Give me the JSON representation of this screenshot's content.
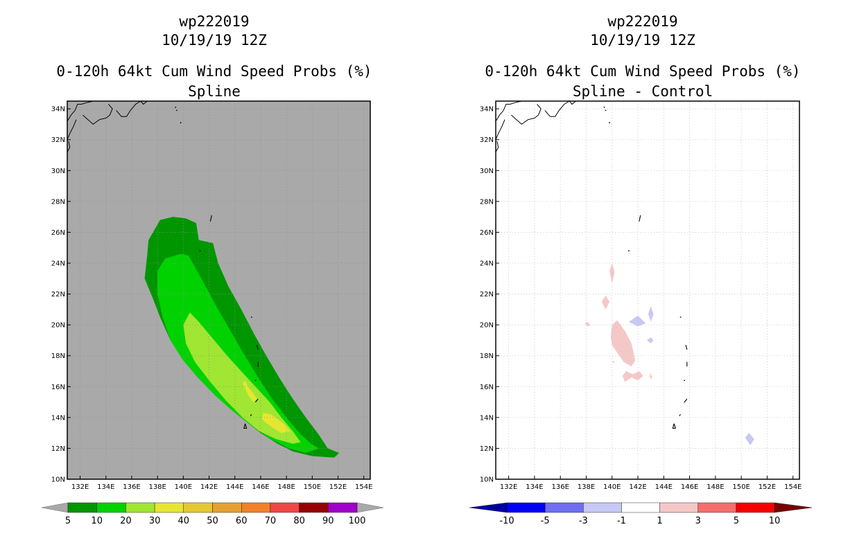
{
  "chart_data": [
    {
      "type": "contour-map",
      "header": {
        "storm_id": "wp222019",
        "datetime": "10/19/19 12Z"
      },
      "title": "0-120h 64kt Cum Wind Speed Probs (%)",
      "subtitle": "Spline",
      "units": "%",
      "xlim": [
        131,
        154.5
      ],
      "ylim": [
        10,
        34.5
      ],
      "x_ticks": [
        "132E",
        "134E",
        "136E",
        "138E",
        "140E",
        "142E",
        "144E",
        "146E",
        "148E",
        "150E",
        "152E",
        "154E"
      ],
      "y_ticks": [
        "10N",
        "12N",
        "14N",
        "16N",
        "18N",
        "20N",
        "22N",
        "24N",
        "26N",
        "28N",
        "30N",
        "32N",
        "34N"
      ],
      "background_color": "#a9a9a9",
      "colorbar": {
        "labels": [
          "5",
          "10",
          "20",
          "30",
          "40",
          "50",
          "60",
          "70",
          "80",
          "90",
          "100"
        ],
        "colors": [
          "#009600",
          "#00d200",
          "#a0e632",
          "#e6e632",
          "#e6c832",
          "#e6a032",
          "#f08228",
          "#f04646",
          "#960000",
          "#a000c8"
        ]
      },
      "contours": [
        {
          "level": "5-10",
          "color": "#009600",
          "polygon": [
            [
              137.3,
              25.5
            ],
            [
              138.2,
              26.8
            ],
            [
              139.2,
              27.0
            ],
            [
              140.2,
              26.9
            ],
            [
              141.0,
              26.6
            ],
            [
              141.2,
              25.5
            ],
            [
              142.3,
              25.3
            ],
            [
              142.7,
              24.0
            ],
            [
              143.5,
              22.5
            ],
            [
              144.5,
              21.0
            ],
            [
              145.5,
              19.4
            ],
            [
              146.5,
              17.9
            ],
            [
              147.5,
              16.5
            ],
            [
              148.5,
              15.2
            ],
            [
              149.5,
              14.0
            ],
            [
              150.5,
              12.9
            ],
            [
              151.2,
              12.0
            ],
            [
              152.1,
              11.7
            ],
            [
              151.7,
              11.4
            ],
            [
              150.0,
              11.5
            ],
            [
              148.5,
              11.8
            ],
            [
              147.3,
              12.3
            ],
            [
              146.0,
              13.0
            ],
            [
              144.5,
              14.0
            ],
            [
              143.0,
              15.1
            ],
            [
              141.5,
              16.3
            ],
            [
              140.2,
              17.6
            ],
            [
              139.0,
              19.0
            ],
            [
              138.2,
              20.5
            ],
            [
              137.6,
              21.8
            ],
            [
              137.0,
              23.0
            ],
            [
              137.2,
              24.5
            ]
          ]
        },
        {
          "level": "10-20",
          "color": "#00d200",
          "polygon": [
            [
              138.0,
              23.5
            ],
            [
              138.6,
              24.3
            ],
            [
              139.8,
              24.6
            ],
            [
              140.4,
              24.5
            ],
            [
              141.4,
              23.0
            ],
            [
              142.5,
              21.3
            ],
            [
              143.6,
              19.7
            ],
            [
              144.7,
              18.1
            ],
            [
              145.8,
              16.6
            ],
            [
              146.9,
              15.2
            ],
            [
              148.0,
              14.0
            ],
            [
              149.0,
              13.0
            ],
            [
              149.9,
              12.3
            ],
            [
              150.5,
              12.0
            ],
            [
              149.5,
              11.7
            ],
            [
              148.2,
              12.0
            ],
            [
              146.8,
              12.6
            ],
            [
              145.4,
              13.4
            ],
            [
              144.0,
              14.3
            ],
            [
              142.5,
              15.4
            ],
            [
              141.1,
              16.6
            ],
            [
              139.9,
              17.8
            ],
            [
              139.0,
              19.0
            ],
            [
              138.4,
              20.5
            ],
            [
              138.0,
              22.0
            ]
          ]
        },
        {
          "level": "20-30",
          "color": "#a0e632",
          "polygon": [
            [
              140.0,
              20.0
            ],
            [
              140.5,
              20.8
            ],
            [
              141.2,
              20.2
            ],
            [
              142.2,
              19.2
            ],
            [
              143.4,
              18.0
            ],
            [
              144.6,
              16.9
            ],
            [
              145.7,
              15.9
            ],
            [
              146.7,
              15.0
            ],
            [
              147.6,
              14.0
            ],
            [
              148.5,
              13.1
            ],
            [
              149.1,
              12.4
            ],
            [
              148.5,
              12.3
            ],
            [
              147.2,
              12.6
            ],
            [
              145.9,
              13.1
            ],
            [
              144.6,
              14.0
            ],
            [
              143.3,
              15.1
            ],
            [
              142.0,
              16.4
            ],
            [
              140.9,
              17.6
            ],
            [
              140.2,
              18.8
            ]
          ]
        },
        {
          "level": "30-40",
          "color": "#e6e632",
          "polygon": [
            [
              144.6,
              16.2
            ],
            [
              144.8,
              15.9
            ],
            [
              145.0,
              15.5
            ],
            [
              145.4,
              15.0
            ],
            [
              145.7,
              15.2
            ],
            [
              145.4,
              15.6
            ],
            [
              145.0,
              16.0
            ],
            [
              144.8,
              16.4
            ]
          ]
        },
        {
          "level": "30-40",
          "color": "#e6e632",
          "polygon": [
            [
              146.2,
              14.3
            ],
            [
              146.8,
              14.2
            ],
            [
              147.3,
              13.9
            ],
            [
              147.9,
              13.5
            ],
            [
              148.3,
              13.1
            ],
            [
              147.6,
              13.0
            ],
            [
              147.0,
              13.3
            ],
            [
              146.5,
              13.6
            ],
            [
              146.1,
              13.9
            ]
          ]
        }
      ],
      "islands": [
        [
          [
            142.1,
            26.7
          ],
          [
            142.2,
            27.1
          ]
        ],
        [
          [
            141.3,
            24.8
          ],
          [
            141.3,
            24.8
          ]
        ],
        [
          [
            145.3,
            20.5
          ],
          [
            145.3,
            20.5
          ]
        ],
        [
          [
            145.7,
            18.7
          ],
          [
            145.8,
            18.4
          ]
        ],
        [
          [
            145.8,
            17.6
          ],
          [
            145.8,
            17.3
          ]
        ],
        [
          [
            145.6,
            16.4
          ],
          [
            145.6,
            16.4
          ]
        ],
        [
          [
            145.8,
            15.2
          ],
          [
            145.6,
            15.0
          ]
        ],
        [
          [
            145.3,
            14.2
          ],
          [
            145.2,
            14.1
          ]
        ],
        [
          [
            144.8,
            13.6
          ],
          [
            144.7,
            13.3
          ],
          [
            144.9,
            13.3
          ],
          [
            144.8,
            13.6
          ]
        ]
      ]
    },
    {
      "type": "contour-map",
      "header": {
        "storm_id": "wp222019",
        "datetime": "10/19/19 12Z"
      },
      "title": "0-120h 64kt Cum Wind Speed Probs (%)",
      "subtitle": "Spline - Control",
      "units": "%",
      "xlim": [
        131,
        154.5
      ],
      "ylim": [
        10,
        34.5
      ],
      "x_ticks": [
        "132E",
        "134E",
        "136E",
        "138E",
        "140E",
        "142E",
        "144E",
        "146E",
        "148E",
        "150E",
        "152E",
        "154E"
      ],
      "y_ticks": [
        "10N",
        "12N",
        "14N",
        "16N",
        "18N",
        "20N",
        "22N",
        "24N",
        "26N",
        "28N",
        "30N",
        "32N",
        "34N"
      ],
      "background_color": "#ffffff",
      "colorbar": {
        "labels": [
          "-10",
          "-5",
          "-3",
          "-1",
          "1",
          "3",
          "5",
          "10"
        ],
        "colors": [
          "#0000a0",
          "#0000f5",
          "#6e6ef0",
          "#c8c8f5",
          "#ffffff",
          "#f5c8c8",
          "#f56e6e",
          "#f50000",
          "#780000"
        ]
      },
      "contours": [
        {
          "level": "1-3",
          "color": "#f5c8c8",
          "polygon": [
            [
              139.8,
              23.5
            ],
            [
              140.0,
              24.0
            ],
            [
              140.2,
              23.4
            ],
            [
              140.0,
              22.7
            ]
          ]
        },
        {
          "level": "1-3",
          "color": "#f5c8c8",
          "polygon": [
            [
              139.2,
              21.5
            ],
            [
              139.5,
              21.9
            ],
            [
              139.8,
              21.5
            ],
            [
              139.5,
              21.0
            ]
          ]
        },
        {
          "level": "1-3",
          "color": "#f5c8c8",
          "polygon": [
            [
              137.9,
              20.1
            ],
            [
              138.1,
              20.2
            ],
            [
              138.3,
              20.0
            ],
            [
              138.1,
              19.9
            ]
          ]
        },
        {
          "level": "1-3",
          "color": "#f5c8c8",
          "polygon": [
            [
              140.0,
              20.0
            ],
            [
              140.4,
              20.3
            ],
            [
              141.0,
              19.6
            ],
            [
              141.5,
              18.8
            ],
            [
              141.8,
              17.7
            ],
            [
              141.5,
              17.3
            ],
            [
              140.9,
              17.6
            ],
            [
              140.4,
              18.2
            ],
            [
              140.0,
              18.7
            ],
            [
              139.9,
              19.2
            ]
          ]
        },
        {
          "level": "1-3",
          "color": "#f5c8c8",
          "polygon": [
            [
              140.8,
              16.7
            ],
            [
              141.1,
              17.0
            ],
            [
              141.6,
              16.8
            ],
            [
              142.1,
              17.0
            ],
            [
              142.4,
              16.7
            ],
            [
              142.0,
              16.4
            ],
            [
              141.5,
              16.6
            ],
            [
              141.0,
              16.3
            ]
          ]
        },
        {
          "level": "1-3",
          "color": "#f5c8c8",
          "polygon": [
            [
              142.9,
              16.6
            ],
            [
              143.0,
              16.9
            ],
            [
              143.1,
              16.5
            ]
          ]
        },
        {
          "level": "1-3",
          "color": "#f5c8c8",
          "polygon": [
            [
              140.0,
              17.6
            ],
            [
              140.1,
              17.7
            ],
            [
              140.2,
              17.5
            ]
          ]
        },
        {
          "level": "-3--1",
          "color": "#c8c8f5",
          "polygon": [
            [
              141.3,
              20.2
            ],
            [
              142.0,
              20.6
            ],
            [
              142.6,
              20.1
            ],
            [
              142.0,
              19.9
            ]
          ]
        },
        {
          "level": "-3--1",
          "color": "#c8c8f5",
          "polygon": [
            [
              142.8,
              20.7
            ],
            [
              143.0,
              21.2
            ],
            [
              143.2,
              20.7
            ],
            [
              143.0,
              20.2
            ]
          ]
        },
        {
          "level": "-3--1",
          "color": "#c8c8f5",
          "polygon": [
            [
              142.7,
              19.0
            ],
            [
              143.0,
              19.2
            ],
            [
              143.2,
              19.0
            ],
            [
              143.0,
              18.8
            ]
          ]
        },
        {
          "level": "-3--1",
          "color": "#c8c8f5",
          "polygon": [
            [
              150.3,
              12.7
            ],
            [
              150.6,
              13.0
            ],
            [
              151.0,
              12.6
            ],
            [
              150.7,
              12.2
            ]
          ]
        },
        {
          "level": "-3--1",
          "color": "#c8c8f5",
          "polygon": [
            [
              145.5,
              14.9
            ],
            [
              145.6,
              15.1
            ],
            [
              145.7,
              14.9
            ]
          ]
        }
      ],
      "islands": [
        [
          [
            142.1,
            26.7
          ],
          [
            142.2,
            27.1
          ]
        ],
        [
          [
            141.3,
            24.8
          ],
          [
            141.3,
            24.8
          ]
        ],
        [
          [
            145.3,
            20.5
          ],
          [
            145.3,
            20.5
          ]
        ],
        [
          [
            145.7,
            18.7
          ],
          [
            145.8,
            18.4
          ]
        ],
        [
          [
            145.8,
            17.6
          ],
          [
            145.8,
            17.3
          ]
        ],
        [
          [
            145.6,
            16.4
          ],
          [
            145.6,
            16.4
          ]
        ],
        [
          [
            145.8,
            15.2
          ],
          [
            145.6,
            15.0
          ]
        ],
        [
          [
            145.3,
            14.2
          ],
          [
            145.2,
            14.1
          ]
        ],
        [
          [
            144.8,
            13.6
          ],
          [
            144.7,
            13.3
          ],
          [
            144.9,
            13.3
          ],
          [
            144.8,
            13.6
          ]
        ]
      ]
    }
  ]
}
